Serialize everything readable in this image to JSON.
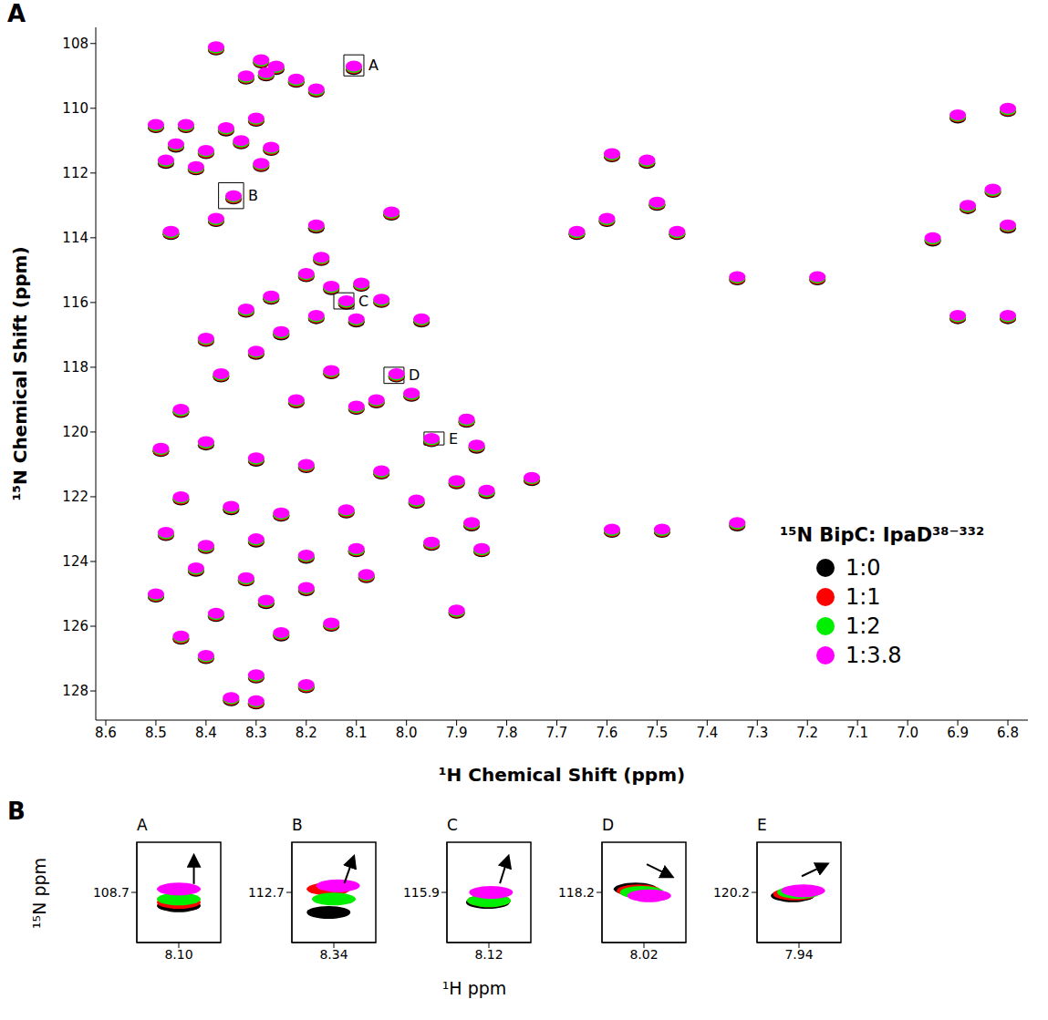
{
  "chart_data": [
    {
      "panel": "A",
      "type": "scatter",
      "xlabel": "¹H Chemical Shift (ppm)",
      "ylabel": "¹⁵N Chemical Shift (ppm)",
      "legend_title": "¹⁵N BipC: IpaD³⁸⁻³³²",
      "legend": "bottom right",
      "xlim": [
        8.62,
        6.76
      ],
      "ylim": [
        128.9,
        107.5
      ],
      "xticks": [
        8.6,
        8.5,
        8.4,
        8.3,
        8.2,
        8.1,
        {
          "value": 8,
          "label": "8.0"
        },
        7.9,
        7.8,
        7.7,
        7.6,
        7.5,
        7.4,
        7.3,
        7.2,
        7.1,
        {
          "value": 7,
          "label": "7.0"
        },
        6.9,
        6.8
      ],
      "yticks": [
        108,
        110,
        112,
        114,
        116,
        118,
        120,
        122,
        124,
        126,
        128
      ],
      "x": [
        8.38,
        8.29,
        8.28,
        8.26,
        8.22,
        8.32,
        8.18,
        8.105,
        8.5,
        8.44,
        8.36,
        8.3,
        8.46,
        8.4,
        8.33,
        8.27,
        8.48,
        8.42,
        8.29,
        8.345,
        8.38,
        8.47,
        8.18,
        8.03,
        8.17,
        8.2,
        8.15,
        8.09,
        8.27,
        8.12,
        8.05,
        8.32,
        8.18,
        8.1,
        8.25,
        8.4,
        8.3,
        7.97,
        8.37,
        8.15,
        8.02,
        7.99,
        8.45,
        8.22,
        8.1,
        7.95,
        7.88,
        7.86,
        8.49,
        8.4,
        8.3,
        8.2,
        8.05,
        7.9,
        7.84,
        7.75,
        8.45,
        8.35,
        8.25,
        8.12,
        7.98,
        7.87,
        8.48,
        8.4,
        8.3,
        8.2,
        8.1,
        7.95,
        7.85,
        8.42,
        8.32,
        8.2,
        8.08,
        7.9,
        8.5,
        8.38,
        8.28,
        8.15,
        8.45,
        8.25,
        8.4,
        8.3,
        8.35,
        8.3,
        8.2,
        7.59,
        7.52,
        7.6,
        7.5,
        7.46,
        7.66,
        7.18,
        7.34,
        6.9,
        6.8,
        6.83,
        6.88,
        6.8,
        6.95,
        6.9,
        6.8,
        7.59,
        7.49,
        7.34,
        8.06
      ],
      "series": [
        {
          "name": "1:0",
          "color": "#000000",
          "values": [
            108.2,
            108.6,
            109,
            108.8,
            109.2,
            109.1,
            109.5,
            108.8,
            110.6,
            110.6,
            110.7,
            110.4,
            111.2,
            111.4,
            111.1,
            111.3,
            111.7,
            111.9,
            111.8,
            112.8,
            113.5,
            113.9,
            113.7,
            113.3,
            114.7,
            115.2,
            115.6,
            115.5,
            115.9,
            116.05,
            116,
            116.3,
            116.5,
            116.6,
            117,
            117.2,
            117.6,
            116.6,
            118.3,
            118.2,
            118.3,
            118.9,
            119.4,
            119.1,
            119.3,
            120.3,
            119.7,
            120.5,
            120.6,
            120.4,
            120.9,
            121.1,
            121.3,
            121.6,
            121.9,
            121.5,
            122.1,
            122.4,
            122.6,
            122.5,
            122.2,
            122.9,
            123.2,
            123.6,
            123.4,
            123.9,
            123.7,
            123.5,
            123.7,
            124.3,
            124.6,
            124.9,
            124.5,
            125.6,
            125.1,
            125.7,
            125.3,
            126,
            126.4,
            126.3,
            127,
            127.6,
            128.3,
            128.4,
            127.9,
            111.5,
            111.7,
            113.5,
            113,
            113.9,
            113.9,
            115.3,
            115.3,
            110.3,
            110.1,
            112.6,
            113.1,
            113.7,
            114.1,
            116.5,
            116.5,
            123.1,
            123.1,
            122.9,
            119.1
          ]
        },
        {
          "name": "1:1",
          "color": "#ff0000",
          "values": [
            108.17,
            108.57,
            108.97,
            108.77,
            109.17,
            109.07,
            109.47,
            108.77,
            110.57,
            110.57,
            110.67,
            110.37,
            111.17,
            111.37,
            111.07,
            111.27,
            111.67,
            111.87,
            111.77,
            112.77,
            113.47,
            113.87,
            113.67,
            113.27,
            114.67,
            115.17,
            115.57,
            115.47,
            115.87,
            116.02,
            115.97,
            116.27,
            116.47,
            116.57,
            116.97,
            117.17,
            117.57,
            116.57,
            118.27,
            118.17,
            118.27,
            118.87,
            119.37,
            119.07,
            119.27,
            120.27,
            119.67,
            120.47,
            120.57,
            120.37,
            120.87,
            121.07,
            121.27,
            121.57,
            121.87,
            121.47,
            122.07,
            122.37,
            122.57,
            122.47,
            122.17,
            122.87,
            123.17,
            123.57,
            123.37,
            123.87,
            123.67,
            123.47,
            123.67,
            124.27,
            124.57,
            124.87,
            124.47,
            125.57,
            125.07,
            125.67,
            125.27,
            125.97,
            126.37,
            126.27,
            126.97,
            127.57,
            128.27,
            128.37,
            127.87,
            111.47,
            111.67,
            113.47,
            112.97,
            113.87,
            113.87,
            115.27,
            115.27,
            110.27,
            110.07,
            112.57,
            113.07,
            113.67,
            114.07,
            116.47,
            116.47,
            123.07,
            123.07,
            122.87,
            119.07
          ]
        },
        {
          "name": "1:2",
          "color": "#00ee00",
          "values": [
            108.14,
            108.54,
            108.94,
            108.74,
            109.14,
            109.04,
            109.44,
            108.74,
            110.54,
            110.54,
            110.64,
            110.34,
            111.14,
            111.34,
            111.04,
            111.24,
            111.64,
            111.84,
            111.74,
            112.74,
            113.44,
            113.84,
            113.64,
            113.24,
            114.64,
            115.14,
            115.54,
            115.44,
            115.84,
            115.99,
            115.94,
            116.24,
            116.44,
            116.54,
            116.94,
            117.14,
            117.54,
            116.54,
            118.24,
            118.14,
            118.24,
            118.84,
            119.34,
            119.04,
            119.24,
            120.24,
            119.64,
            120.44,
            120.54,
            120.34,
            120.84,
            121.04,
            121.24,
            121.54,
            121.84,
            121.44,
            122.04,
            122.34,
            122.54,
            122.44,
            122.14,
            122.84,
            123.14,
            123.54,
            123.34,
            123.84,
            123.64,
            123.44,
            123.64,
            124.24,
            124.54,
            124.84,
            124.44,
            125.54,
            125.04,
            125.64,
            125.24,
            125.94,
            126.34,
            126.24,
            126.94,
            127.54,
            128.24,
            128.34,
            127.84,
            111.44,
            111.64,
            113.44,
            112.94,
            113.84,
            113.84,
            115.24,
            115.24,
            110.24,
            110.04,
            112.54,
            113.04,
            113.64,
            114.04,
            116.44,
            116.44,
            123.04,
            123.04,
            122.84,
            119.04
          ]
        },
        {
          "name": "1:3.8",
          "color": "#ff00ff",
          "values": [
            108.1,
            108.5,
            108.9,
            108.7,
            109.1,
            109,
            109.4,
            108.7,
            110.5,
            110.5,
            110.6,
            110.3,
            111.1,
            111.3,
            111,
            111.2,
            111.6,
            111.8,
            111.7,
            112.7,
            113.4,
            113.8,
            113.6,
            113.2,
            114.6,
            115.1,
            115.5,
            115.4,
            115.8,
            115.95,
            115.9,
            116.2,
            116.4,
            116.5,
            116.9,
            117.1,
            117.5,
            116.5,
            118.2,
            118.1,
            118.2,
            118.8,
            119.3,
            119,
            119.2,
            120.2,
            119.6,
            120.4,
            120.5,
            120.3,
            120.8,
            121,
            121.2,
            121.5,
            121.8,
            121.4,
            122,
            122.3,
            122.5,
            122.4,
            122.1,
            122.8,
            123.1,
            123.5,
            123.3,
            123.8,
            123.6,
            123.4,
            123.6,
            124.2,
            124.5,
            124.8,
            124.4,
            125.5,
            125,
            125.6,
            125.2,
            125.9,
            126.3,
            126.2,
            126.9,
            127.5,
            128.2,
            128.3,
            127.8,
            111.4,
            111.6,
            113.4,
            112.9,
            113.8,
            113.8,
            115.2,
            115.2,
            110.2,
            110,
            112.5,
            113,
            113.6,
            114,
            116.4,
            116.4,
            123,
            123,
            122.8,
            119
          ]
        }
      ],
      "annotations": [
        {
          "label": "A",
          "x1": 8.125,
          "x2": 8.085,
          "y1": 108.35,
          "y2": 109.0
        },
        {
          "label": "B",
          "x1": 8.375,
          "x2": 8.325,
          "y1": 112.3,
          "y2": 113.1
        },
        {
          "label": "C",
          "x1": 8.145,
          "x2": 8.105,
          "y1": 115.7,
          "y2": 116.2
        },
        {
          "label": "D",
          "x1": 8.045,
          "x2": 8.005,
          "y1": 118.0,
          "y2": 118.5
        },
        {
          "label": "E",
          "x1": 7.965,
          "x2": 7.925,
          "y1": 120.0,
          "y2": 120.4
        }
      ]
    },
    {
      "panel": "B",
      "type": "scatter",
      "xlabel": "¹H ppm",
      "ylabel": "¹⁵N ppm",
      "subplots": [
        {
          "title": "A",
          "xlim": [
            8.14,
            8.06
          ],
          "ylim": [
            109.0,
            108.4
          ],
          "xticks": [
            {
              "value": 8.1,
              "label": "8.10"
            }
          ],
          "yticks": [
            108.7
          ],
          "series": [
            {
              "name": "1:0",
              "color": "#000000",
              "x": [
                8.1
              ],
              "values": [
                108.78
              ]
            },
            {
              "name": "1:1",
              "color": "#ff0000",
              "x": [
                8.1
              ],
              "values": [
                108.76
              ]
            },
            {
              "name": "1:2",
              "color": "#00ee00",
              "x": [
                8.1
              ],
              "values": [
                108.74
              ]
            },
            {
              "name": "1:3.8",
              "color": "#ff00ff",
              "x": [
                8.1
              ],
              "values": [
                108.68
              ]
            }
          ]
        },
        {
          "title": "B",
          "xlim": [
            8.38,
            8.3
          ],
          "ylim": [
            113.0,
            112.4
          ],
          "xticks": [
            8.34
          ],
          "yticks": [
            112.7
          ],
          "series": [
            {
              "name": "1:0",
              "color": "#000000",
              "x": [
                8.345
              ],
              "values": [
                112.82
              ]
            },
            {
              "name": "1:1",
              "color": "#ff0000",
              "x": [
                8.345
              ],
              "values": [
                112.68
              ]
            },
            {
              "name": "1:2",
              "color": "#00ee00",
              "x": [
                8.34
              ],
              "values": [
                112.74
              ]
            },
            {
              "name": "1:3.8",
              "color": "#ff00ff",
              "x": [
                8.336
              ],
              "values": [
                112.66
              ]
            }
          ]
        },
        {
          "title": "C",
          "xlim": [
            8.16,
            8.08
          ],
          "ylim": [
            116.2,
            115.6
          ],
          "xticks": [
            8.12
          ],
          "yticks": [
            115.9
          ],
          "series": [
            {
              "name": "1:0",
              "color": "#000000",
              "x": [
                8.121
              ],
              "values": [
                115.96
              ]
            },
            {
              "name": "1:1",
              "color": "#ff0000",
              "x": [
                8.12
              ],
              "values": [
                115.95
              ]
            },
            {
              "name": "1:2",
              "color": "#00ee00",
              "x": [
                8.12
              ],
              "values": [
                115.95
              ]
            },
            {
              "name": "1:3.8",
              "color": "#ff00ff",
              "x": [
                8.118
              ],
              "values": [
                115.9
              ]
            }
          ]
        },
        {
          "title": "D",
          "xlim": [
            8.06,
            7.98
          ],
          "ylim": [
            118.5,
            117.9
          ],
          "xticks": [
            8.02
          ],
          "yticks": [
            118.2
          ],
          "series": [
            {
              "name": "1:0",
              "color": "#000000",
              "x": [
                8.028
              ],
              "values": [
                118.18
              ]
            },
            {
              "name": "1:1",
              "color": "#ff0000",
              "x": [
                8.025
              ],
              "values": [
                118.19
              ]
            },
            {
              "name": "1:2",
              "color": "#00ee00",
              "x": [
                8.022
              ],
              "values": [
                118.2
              ]
            },
            {
              "name": "1:3.8",
              "color": "#ff00ff",
              "x": [
                8.015
              ],
              "values": [
                118.22
              ]
            }
          ]
        },
        {
          "title": "E",
          "xlim": [
            7.98,
            7.9
          ],
          "ylim": [
            120.5,
            119.9
          ],
          "xticks": [
            7.94
          ],
          "yticks": [
            120.2
          ],
          "series": [
            {
              "name": "1:0",
              "color": "#000000",
              "x": [
                7.946
              ],
              "values": [
                120.22
              ]
            },
            {
              "name": "1:1",
              "color": "#ff0000",
              "x": [
                7.944
              ],
              "values": [
                120.21
              ]
            },
            {
              "name": "1:2",
              "color": "#00ee00",
              "x": [
                7.94
              ],
              "values": [
                120.2
              ]
            },
            {
              "name": "1:3.8",
              "color": "#ff00ff",
              "x": [
                7.936
              ],
              "values": [
                120.19
              ]
            }
          ]
        }
      ]
    }
  ]
}
